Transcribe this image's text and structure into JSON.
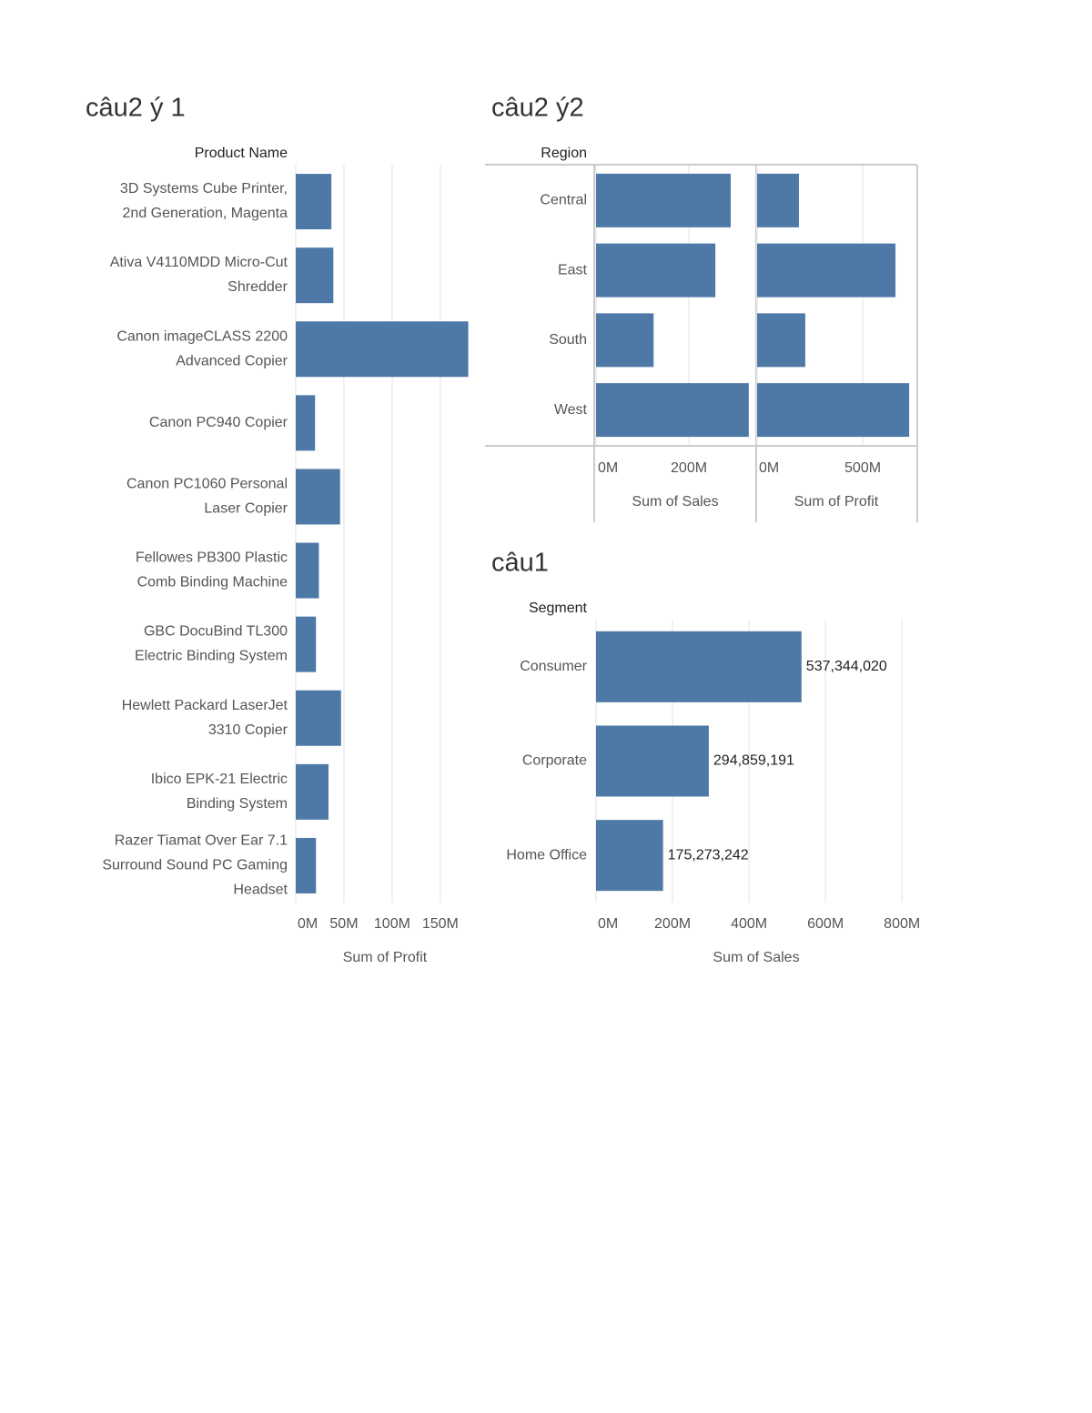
{
  "chart_data": [
    {
      "type": "bar",
      "title": "câu2 ý 1",
      "y_label": "Product Name",
      "x_label": "Sum of Profit",
      "color": "#4e79a7",
      "grid": true,
      "categories": [
        "3D Systems Cube Printer, 2nd Generation, Magenta",
        "Ativa V4110MDD Micro-Cut Shredder",
        "Canon imageCLASS 2200 Advanced Copier",
        "Canon PC940 Copier",
        "Canon PC1060 Personal Laser Copier",
        "Fellowes PB300 Plastic Comb Binding Machine",
        "GBC DocuBind TL300 Electric Binding System",
        "Hewlett Packard LaserJet 3310 Copier",
        "Ibico EPK-21 Electric Binding System",
        "Razer Tiamat Over Ear 7.1 Surround Sound PC Gaming Headset"
      ],
      "values": [
        37000000,
        39000000,
        179000000,
        20000000,
        46000000,
        24000000,
        21000000,
        47000000,
        34000000,
        21000000
      ],
      "xlim": [
        0,
        186000000
      ],
      "xticks": [
        {
          "value": 0,
          "label": "0M"
        },
        {
          "value": 50000000,
          "label": "50M"
        },
        {
          "value": 100000000,
          "label": "100M"
        },
        {
          "value": 150000000,
          "label": "150M"
        }
      ]
    },
    {
      "type": "bar",
      "title": "câu2 ý2",
      "y_label": "Region",
      "color": "#4e79a7",
      "grid": true,
      "categories": [
        "Central",
        "East",
        "South",
        "West"
      ],
      "panels": [
        {
          "x_label": "Sum of Sales",
          "values": [
            290000000,
            257000000,
            124000000,
            329000000
          ],
          "xlim": [
            0,
            343000000
          ],
          "xticks": [
            {
              "value": 0,
              "label": "0M"
            },
            {
              "value": 200000000,
              "label": "200M"
            }
          ]
        },
        {
          "x_label": "Sum of Profit",
          "values": [
            198000000,
            655000000,
            228000000,
            720000000
          ],
          "xlim": [
            0,
            754000000
          ],
          "xticks": [
            {
              "value": 0,
              "label": "0M"
            },
            {
              "value": 500000000,
              "label": "500M"
            }
          ]
        }
      ]
    },
    {
      "type": "bar",
      "title": "câu1",
      "y_label": "Segment",
      "x_label": "Sum of Sales",
      "color": "#4e79a7",
      "grid": true,
      "categories": [
        "Consumer",
        "Corporate",
        "Home Office"
      ],
      "values": [
        537344020,
        294859191,
        175273242
      ],
      "value_labels": [
        "537,344,020",
        "294,859,191",
        "175,273,242"
      ],
      "xlim": [
        0,
        840000000
      ],
      "xticks": [
        {
          "value": 0,
          "label": "0M"
        },
        {
          "value": 200000000,
          "label": "200M"
        },
        {
          "value": 400000000,
          "label": "400M"
        },
        {
          "value": 600000000,
          "label": "600M"
        },
        {
          "value": 800000000,
          "label": "800M"
        }
      ]
    }
  ]
}
